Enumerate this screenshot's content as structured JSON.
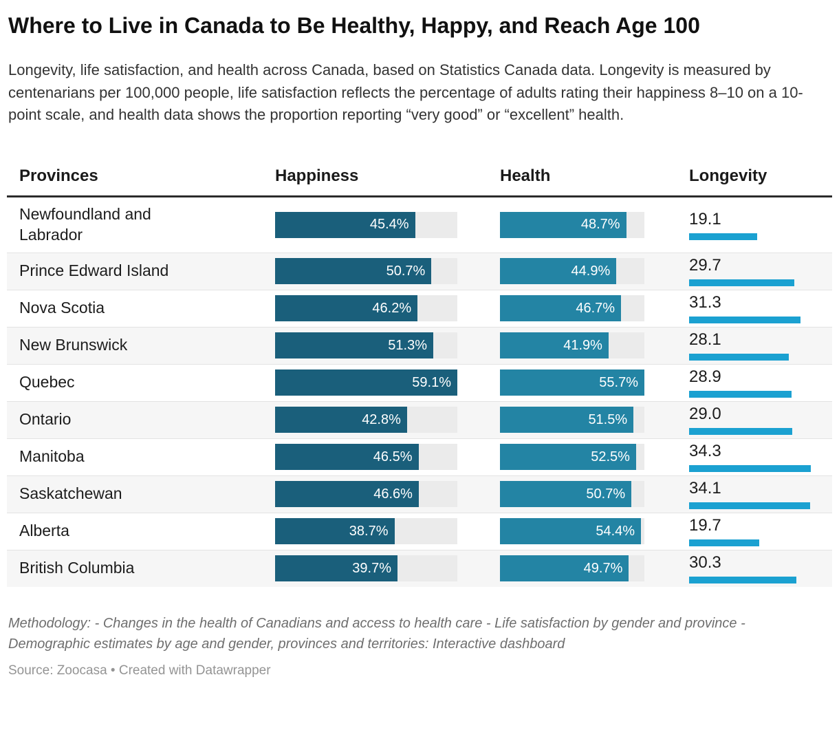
{
  "header": {
    "title": "Where to Live in Canada to Be Healthy, Happy, and Reach Age 100",
    "subtitle": "Longevity, life satisfaction, and health across Canada, based on Statistics Canada data. Longevity is measured by centenarians per 100,000 people, life satisfaction reflects the percentage of adults rating their happiness 8–10 on a 10-point scale, and health data shows the proportion reporting “very good” or “excellent” health."
  },
  "table": {
    "columns": {
      "provinces": "Provinces",
      "happiness": "Happiness",
      "health": "Health",
      "longevity": "Longevity"
    }
  },
  "chart_data": {
    "type": "table",
    "title": "Where to Live in Canada to Be Healthy, Happy, and Reach Age 100",
    "columns": [
      "Provinces",
      "Happiness",
      "Health",
      "Longevity"
    ],
    "happiness_unit": "%",
    "health_unit": "%",
    "happiness_axis_max": 59.1,
    "health_axis_max": 55.7,
    "longevity_axis_max": 34.3,
    "rows": [
      {
        "province": "Newfoundland and Labrador",
        "happiness": 45.4,
        "health": 48.7,
        "longevity": 19.1
      },
      {
        "province": "Prince Edward Island",
        "happiness": 50.7,
        "health": 44.9,
        "longevity": 29.7
      },
      {
        "province": "Nova Scotia",
        "happiness": 46.2,
        "health": 46.7,
        "longevity": 31.3
      },
      {
        "province": "New Brunswick",
        "happiness": 51.3,
        "health": 41.9,
        "longevity": 28.1
      },
      {
        "province": "Quebec",
        "happiness": 59.1,
        "health": 55.7,
        "longevity": 28.9
      },
      {
        "province": "Ontario",
        "happiness": 42.8,
        "health": 51.5,
        "longevity": 29.0
      },
      {
        "province": "Manitoba",
        "happiness": 46.5,
        "health": 52.5,
        "longevity": 34.3
      },
      {
        "province": "Saskatchewan",
        "happiness": 46.6,
        "health": 50.7,
        "longevity": 34.1
      },
      {
        "province": "Alberta",
        "happiness": 38.7,
        "health": 54.4,
        "longevity": 19.7
      },
      {
        "province": "British Columbia",
        "happiness": 39.7,
        "health": 49.7,
        "longevity": 30.3
      }
    ]
  },
  "footer": {
    "methodology": "Methodology: - Changes in the health of Canadians and access to health care - Life satisfaction by gender and province -Demographic estimates by age and gender, provinces and territories: Interactive dashboard",
    "source": "Source: Zoocasa • Created with Datawrapper"
  },
  "colors": {
    "happiness_bar": "#1a5f7b",
    "health_bar": "#2384a4",
    "longevity_bar": "#1ba1d1",
    "bar_track": "#ebebeb",
    "row_alt": "#f6f6f6"
  }
}
